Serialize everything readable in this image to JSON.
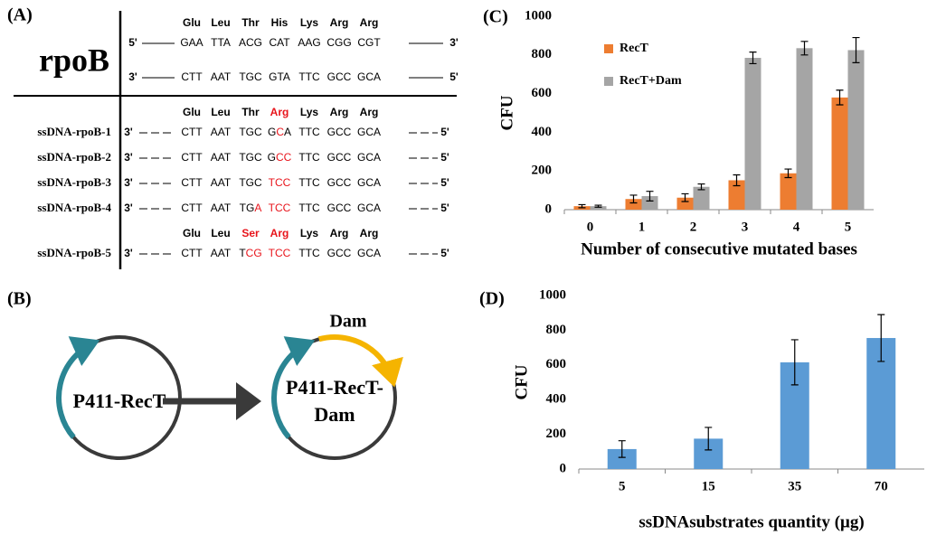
{
  "panel_a": {
    "label": "(A)",
    "gene": "rpoB",
    "wild_type": {
      "amino_acids": [
        "Glu",
        "Leu",
        "Thr",
        "His",
        "Lys",
        "Arg",
        "Arg"
      ],
      "strands": [
        {
          "left": "5'",
          "codons": [
            "GAA",
            "TTA",
            "ACG",
            "CAT",
            "AAG",
            "CGG",
            "CGT"
          ],
          "right": "3'"
        },
        {
          "left": "3'",
          "codons": [
            "CTT",
            "AAT",
            "TGC",
            "GTA",
            "TTC",
            "GCC",
            "GCA"
          ],
          "right": "5'"
        }
      ]
    },
    "mutants": [
      {
        "amino_acids": [
          "Glu",
          "Leu",
          "Thr",
          {
            "text": "Arg",
            "color": "#e8141b"
          },
          "Lys",
          "Arg",
          "Arg"
        ],
        "rows": [
          {
            "name": "ssDNA-rpoB-1",
            "left": "3'",
            "codons": [
              "CTT",
              "AAT",
              "TGC",
              [
                {
                  "text": "G"
                },
                {
                  "text": "C",
                  "color": "#e8141b"
                },
                {
                  "text": "A"
                }
              ],
              "TTC",
              "GCC",
              "GCA"
            ],
            "right": "5'"
          },
          {
            "name": "ssDNA-rpoB-2",
            "left": "3'",
            "codons": [
              "CTT",
              "AAT",
              "TGC",
              [
                {
                  "text": "G"
                },
                {
                  "text": "CC",
                  "color": "#e8141b"
                }
              ],
              "TTC",
              "GCC",
              "GCA"
            ],
            "right": "5'"
          },
          {
            "name": "ssDNA-rpoB-3",
            "left": "3'",
            "codons": [
              "CTT",
              "AAT",
              "TGC",
              [
                {
                  "text": "TCC",
                  "color": "#e8141b"
                }
              ],
              "TTC",
              "GCC",
              "GCA"
            ],
            "right": "5'"
          },
          {
            "name": "ssDNA-rpoB-4",
            "left": "3'",
            "codons": [
              "CTT",
              "AAT",
              [
                {
                  "text": "TG"
                },
                {
                  "text": "A",
                  "color": "#e8141b"
                }
              ],
              [
                {
                  "text": "TCC",
                  "color": "#e8141b"
                }
              ],
              "TTC",
              "GCC",
              "GCA"
            ],
            "right": "5'"
          }
        ]
      },
      {
        "amino_acids": [
          "Glu",
          "Leu",
          {
            "text": "Ser",
            "color": "#e8141b"
          },
          {
            "text": "Arg",
            "color": "#e8141b"
          },
          "Lys",
          "Arg",
          "Arg"
        ],
        "rows": [
          {
            "name": "ssDNA-rpoB-5",
            "left": "3'",
            "codons": [
              "CTT",
              "AAT",
              [
                {
                  "text": "T"
                },
                {
                  "text": "CG",
                  "color": "#e8141b"
                }
              ],
              [
                {
                  "text": "TCC",
                  "color": "#e8141b"
                }
              ],
              "TTC",
              "GCC",
              "GCA"
            ],
            "right": "5'"
          }
        ]
      }
    ]
  },
  "panel_b": {
    "label": "(B)",
    "plasmid_1": [
      "P411-RecT"
    ],
    "plasmid_2": [
      "P411-RecT-",
      "Dam"
    ],
    "gene": "Dam"
  },
  "chart_data": [
    {
      "type": "bar",
      "panel_label": "(C)",
      "xlabel": "Number of consecutive mutated bases",
      "ylabel": "CFU",
      "categories": [
        "0",
        "1",
        "2",
        "3",
        "4",
        "5"
      ],
      "series": [
        {
          "name": "RecT",
          "color": "#ed7d31",
          "values": [
            18,
            55,
            62,
            152,
            188,
            580
          ],
          "errors": [
            8,
            20,
            20,
            28,
            22,
            38
          ]
        },
        {
          "name": "RecT+Dam",
          "color": "#a5a5a5",
          "values": [
            18,
            70,
            118,
            785,
            835,
            825
          ],
          "errors": [
            5,
            25,
            15,
            30,
            35,
            65
          ]
        }
      ],
      "ylim": [
        0,
        1000
      ],
      "yticks": [
        0,
        200,
        400,
        600,
        800,
        1000
      ],
      "legend": "upper left"
    },
    {
      "type": "bar",
      "panel_label": "(D)",
      "xlabel": "ssDNAsubstrates quantity (μg)",
      "ylabel": "CFU",
      "categories": [
        "5",
        "15",
        "35",
        "70"
      ],
      "series": [
        {
          "color": "#5b9bd5",
          "values": [
            115,
            175,
            615,
            755
          ],
          "errors": [
            48,
            65,
            130,
            135
          ]
        }
      ],
      "ylim": [
        0,
        1000
      ],
      "yticks": [
        0,
        200,
        400,
        600,
        800,
        1000
      ]
    }
  ]
}
